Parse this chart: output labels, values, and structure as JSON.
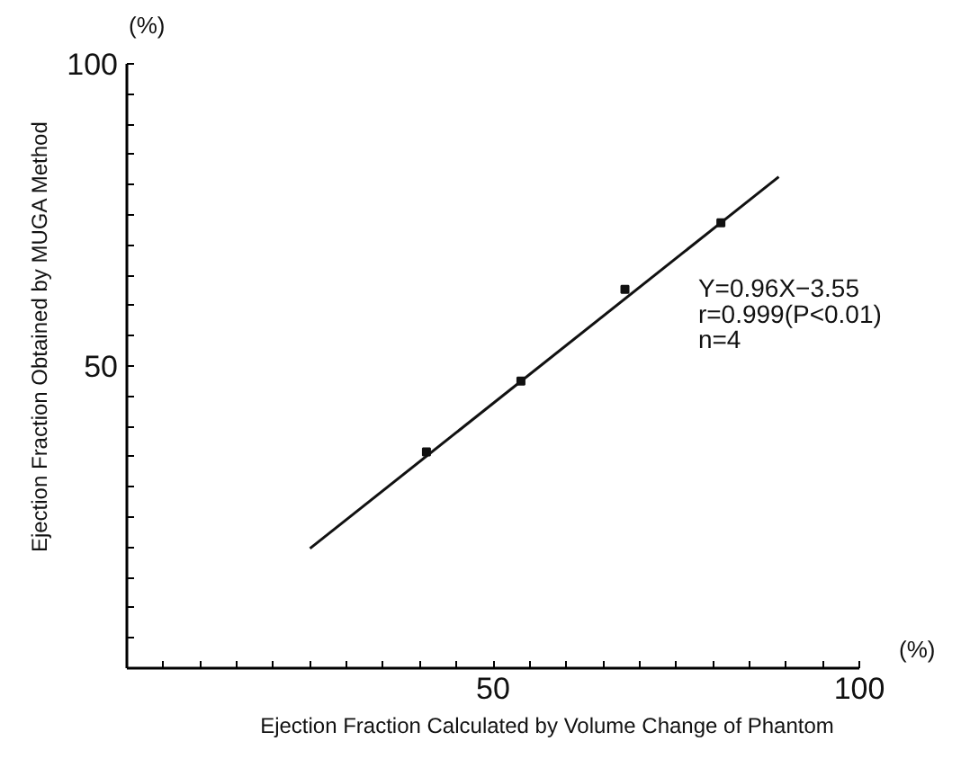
{
  "chart_data": {
    "type": "scatter",
    "xlabel": "Ejection Fraction Calculated by Volume Change of Phantom",
    "ylabel": "Ejection Fraction Obtained by MUGA Method",
    "xlim": [
      0,
      100
    ],
    "ylim": [
      0,
      100
    ],
    "xticks": [
      {
        "value": 5,
        "label": null
      },
      {
        "value": 10,
        "label": null
      },
      {
        "value": 15,
        "label": null
      },
      {
        "value": 20,
        "label": null
      },
      {
        "value": 25,
        "label": null
      },
      {
        "value": 30,
        "label": null
      },
      {
        "value": 35,
        "label": null
      },
      {
        "value": 40,
        "label": null
      },
      {
        "value": 45,
        "label": null
      },
      50,
      {
        "value": 55,
        "label": null
      },
      {
        "value": 60,
        "label": null
      },
      {
        "value": 65,
        "label": null
      },
      {
        "value": 70,
        "label": null
      },
      {
        "value": 75,
        "label": null
      },
      {
        "value": 80,
        "label": null
      },
      {
        "value": 85,
        "label": null
      },
      {
        "value": 90,
        "label": null
      },
      {
        "value": 95,
        "label": null
      },
      100
    ],
    "yticks": [
      {
        "value": 5,
        "label": null
      },
      {
        "value": 10,
        "label": null
      },
      {
        "value": 15,
        "label": null
      },
      {
        "value": 20,
        "label": null
      },
      {
        "value": 25,
        "label": null
      },
      {
        "value": 30,
        "label": null
      },
      {
        "value": 35,
        "label": null
      },
      {
        "value": 40,
        "label": null
      },
      {
        "value": 45,
        "label": null
      },
      50,
      {
        "value": 55,
        "label": null
      },
      {
        "value": 60,
        "label": null
      },
      {
        "value": 65,
        "label": null
      },
      {
        "value": 70,
        "label": null
      },
      {
        "value": 75,
        "label": null
      },
      {
        "value": 80,
        "label": null
      },
      {
        "value": 85,
        "label": null
      },
      {
        "value": 90,
        "label": null
      },
      {
        "value": 95,
        "label": null
      },
      100
    ],
    "grid": false,
    "series": [
      {
        "color": "#111111",
        "marker": "square",
        "x": [
          40.9,
          53.8,
          68.0,
          81.1
        ],
        "values": [
          35.8,
          47.5,
          62.7,
          73.7
        ]
      },
      {
        "type": "line",
        "color": "#111111",
        "marker": "none",
        "x": [
          25,
          89
        ],
        "values": [
          19.8,
          81.3
        ],
        "line_style": "solid"
      }
    ],
    "annotations": [
      "(%)",
      "(%)",
      "Y=0.96X−3.55",
      "r=0.999(P<0.01)",
      "n=4"
    ]
  }
}
